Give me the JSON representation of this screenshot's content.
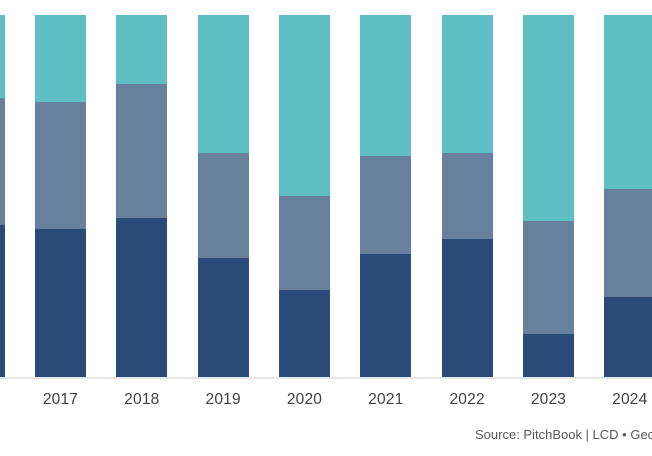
{
  "chart_data": {
    "type": "bar",
    "variant": "stacked-100-percent-columns",
    "title": "",
    "xlabel": "",
    "ylabel": "",
    "ylim": [
      0,
      100
    ],
    "grid": false,
    "legend": "not visible (cropped out of frame)",
    "categories": [
      "",
      "2017",
      "2018",
      "2019",
      "2020",
      "2021",
      "2022",
      "2023",
      "2024"
    ],
    "series": [
      {
        "name": "bottom-segment-dark-navy",
        "color": "#2A4A78",
        "values": [
          42,
          41,
          44,
          33,
          24,
          34,
          38,
          12,
          22
        ]
      },
      {
        "name": "middle-segment-slate-blue",
        "color": "#66809E",
        "values": [
          35,
          35,
          37,
          29,
          26,
          27,
          24,
          31,
          30
        ]
      },
      {
        "name": "top-segment-teal",
        "color": "#5FBDC4",
        "values": [
          23,
          24,
          19,
          38,
          50,
          39,
          38,
          57,
          48
        ]
      }
    ],
    "layout_notes": "leftmost column is cropped at the left image edge (no visible year label); rightmost 2024 column is cropped at the right image edge"
  },
  "source_line": {
    "text": "Source: PitchBook | LCD • Geog"
  },
  "colors": {
    "background": "#FFFFFF",
    "axis_line": "#E7E7E7",
    "x_label_text": "#414042",
    "source_text": "#58595B"
  }
}
